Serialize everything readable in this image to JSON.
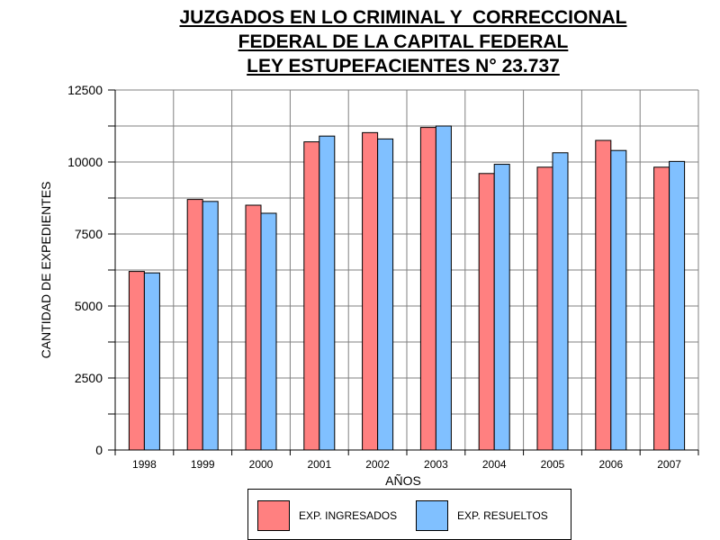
{
  "chart_data": {
    "type": "bar",
    "title_lines": [
      "JUZGADOS EN LO CRIMINAL Y  CORRECCIONAL",
      "FEDERAL DE LA CAPITAL FEDERAL",
      "LEY ESTUPEFACIENTES N° 23.737"
    ],
    "xlabel": "AÑOS",
    "ylabel": "CANTIDAD DE EXPEDIENTES",
    "categories": [
      "1998",
      "1999",
      "2000",
      "2001",
      "2002",
      "2003",
      "2004",
      "2005",
      "2006",
      "2007"
    ],
    "series": [
      {
        "name": "EXP. INGRESADOS",
        "color": "#ff8080",
        "values": [
          6200,
          8700,
          8500,
          10700,
          11020,
          11200,
          9600,
          9820,
          10750,
          9820
        ]
      },
      {
        "name": "EXP. RESUELTOS",
        "color": "#80c0ff",
        "values": [
          6150,
          8630,
          8220,
          10900,
          10800,
          11250,
          9920,
          10320,
          10400,
          10020
        ]
      }
    ],
    "ylim": [
      0,
      12500
    ],
    "yticks": [
      0,
      2500,
      5000,
      7500,
      10000,
      12500
    ],
    "grid": true,
    "legend_position": "bottom"
  }
}
